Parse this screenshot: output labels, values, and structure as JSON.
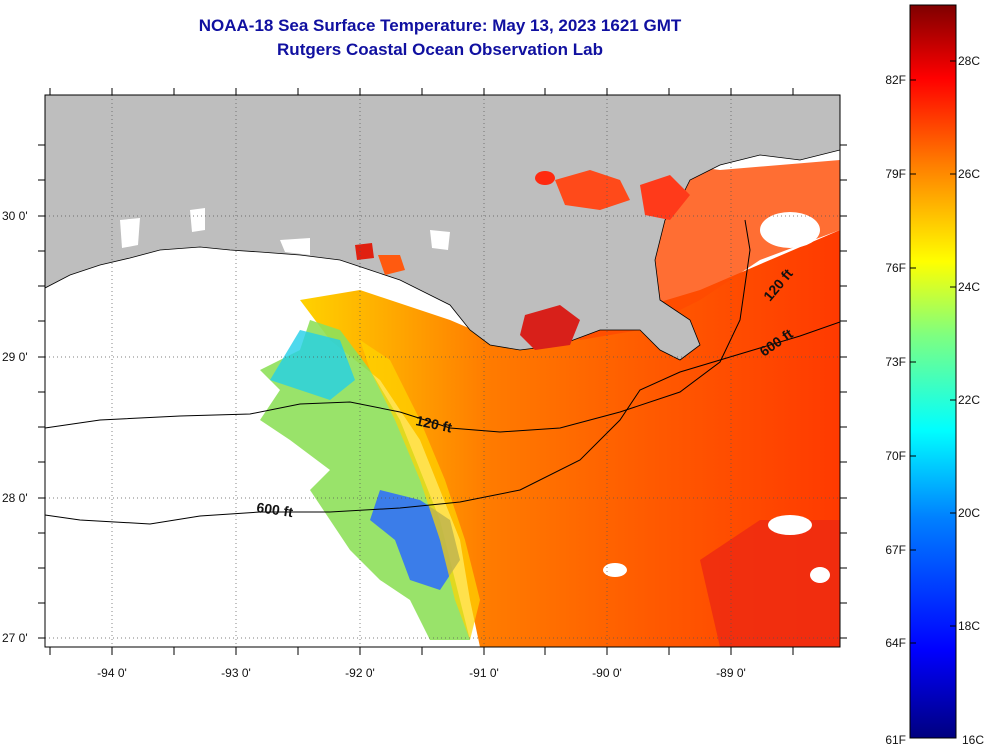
{
  "title": {
    "line1": "NOAA-18 Sea Surface Temperature:  May 13, 2023 1621 GMT",
    "line2": "Rutgers Coastal Ocean Observation Lab"
  },
  "map": {
    "lat_labels": [
      "30 0'",
      "29 0'",
      "28 0'",
      "27 0'"
    ],
    "lon_labels": [
      "-94 0'",
      "-93 0'",
      "-92 0'",
      "-91 0'",
      "-90 0'",
      "-89 0'"
    ],
    "contours": [
      {
        "label": "120 ft"
      },
      {
        "label": "600 ft"
      },
      {
        "label": "120 ft"
      },
      {
        "label": "600 ft"
      }
    ],
    "colors": {
      "land": "#bebebe",
      "no_data": "#ffffff",
      "contour": "#000000"
    }
  },
  "colorbar": {
    "fahrenheit_labels": [
      "82F",
      "79F",
      "76F",
      "73F",
      "70F",
      "67F",
      "64F",
      "61F"
    ],
    "celsius_labels": [
      "28C",
      "26C",
      "24C",
      "22C",
      "20C",
      "18C",
      "16C"
    ],
    "gradient": [
      "#8b0000",
      "#e41a1c",
      "#ff6a00",
      "#ffa500",
      "#ffff00",
      "#7fff7f",
      "#00ffff",
      "#0080ff",
      "#0000ff",
      "#00008b"
    ]
  }
}
